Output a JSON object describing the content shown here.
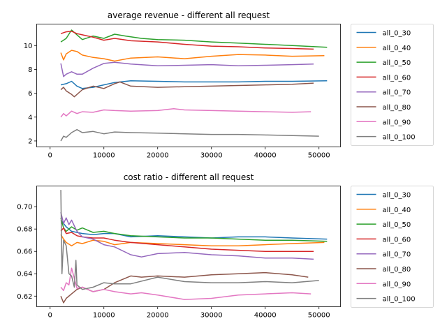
{
  "colors": [
    "#1f77b4",
    "#ff7f0e",
    "#2ca02c",
    "#d62728",
    "#9467bd",
    "#8c564b",
    "#e377c2",
    "#7f7f7f"
  ],
  "chart_data": [
    {
      "type": "line",
      "title": "average revenue - different all request",
      "xlabel": "",
      "ylabel": "",
      "xlim": [
        -2500,
        54000
      ],
      "ylim": [
        1.5,
        11.8
      ],
      "xticks": [
        0,
        10000,
        20000,
        30000,
        40000,
        50000
      ],
      "yticks": [
        2,
        4,
        6,
        8,
        10
      ],
      "ytick_labels": [
        "2",
        "4",
        "6",
        "8",
        "10"
      ],
      "grid": false,
      "legend": "outside-right",
      "series": [
        {
          "name": "all_0_30",
          "x": [
            2000,
            3000,
            4000,
            5000,
            6000,
            8000,
            10000,
            12000,
            15000,
            20000,
            25000,
            30000,
            35000,
            40000,
            45000,
            51500
          ],
          "y": [
            6.7,
            6.8,
            7.0,
            6.6,
            6.4,
            6.5,
            6.7,
            6.9,
            7.05,
            7.0,
            6.95,
            6.95,
            6.95,
            7.0,
            7.0,
            7.05
          ]
        },
        {
          "name": "all_0_40",
          "x": [
            2000,
            2500,
            3000,
            4000,
            5000,
            6000,
            8000,
            10000,
            12000,
            15000,
            20000,
            25000,
            30000,
            35000,
            40000,
            45000,
            51000
          ],
          "y": [
            9.4,
            8.8,
            9.3,
            9.6,
            9.5,
            9.2,
            9.0,
            8.9,
            8.7,
            8.95,
            9.05,
            8.9,
            9.1,
            9.25,
            9.2,
            9.1,
            9.15
          ]
        },
        {
          "name": "all_0_50",
          "x": [
            2000,
            3000,
            4000,
            5000,
            6000,
            8000,
            10000,
            12000,
            14000,
            17000,
            20000,
            25000,
            30000,
            35000,
            40000,
            45000,
            51500
          ],
          "y": [
            10.3,
            10.6,
            11.3,
            10.9,
            10.5,
            10.8,
            10.6,
            10.95,
            10.8,
            10.6,
            10.5,
            10.45,
            10.3,
            10.2,
            10.1,
            10.0,
            9.85
          ]
        },
        {
          "name": "all_0_60",
          "x": [
            2000,
            3000,
            4000,
            5000,
            6000,
            8000,
            10000,
            12000,
            15000,
            20000,
            25000,
            30000,
            35000,
            40000,
            45000,
            49000
          ],
          "y": [
            11.0,
            11.15,
            11.2,
            11.0,
            10.9,
            10.7,
            10.45,
            10.6,
            10.4,
            10.3,
            10.1,
            9.95,
            9.9,
            9.8,
            9.75,
            9.7
          ]
        },
        {
          "name": "all_0_70",
          "x": [
            2000,
            2500,
            3000,
            4000,
            5000,
            6000,
            8000,
            10000,
            12000,
            15000,
            20000,
            25000,
            30000,
            35000,
            40000,
            45000,
            49000
          ],
          "y": [
            8.5,
            7.4,
            7.6,
            7.8,
            7.6,
            7.6,
            8.1,
            8.5,
            8.6,
            8.45,
            8.3,
            8.35,
            8.4,
            8.3,
            8.35,
            8.4,
            8.45
          ]
        },
        {
          "name": "all_0_80",
          "x": [
            2000,
            2500,
            3000,
            4000,
            4500,
            6000,
            8000,
            10000,
            12000,
            13000,
            15000,
            20000,
            25000,
            30000,
            35000,
            40000,
            45000,
            49000
          ],
          "y": [
            6.3,
            6.5,
            6.2,
            5.9,
            5.7,
            6.3,
            6.6,
            6.4,
            6.8,
            6.95,
            6.6,
            6.5,
            6.55,
            6.6,
            6.65,
            6.7,
            6.75,
            6.85
          ]
        },
        {
          "name": "all_0_90",
          "x": [
            2000,
            2500,
            3000,
            4000,
            5000,
            6000,
            8000,
            10000,
            12000,
            15000,
            20000,
            23000,
            25000,
            30000,
            35000,
            40000,
            45000,
            48500
          ],
          "y": [
            4.0,
            4.3,
            4.1,
            4.5,
            4.3,
            4.45,
            4.4,
            4.6,
            4.55,
            4.5,
            4.55,
            4.7,
            4.6,
            4.55,
            4.5,
            4.45,
            4.4,
            4.45
          ]
        },
        {
          "name": "all_0_100",
          "x": [
            2000,
            2500,
            3000,
            4000,
            5000,
            6000,
            8000,
            10000,
            12000,
            15000,
            20000,
            25000,
            30000,
            35000,
            40000,
            45000,
            50000
          ],
          "y": [
            2.0,
            2.4,
            2.3,
            2.7,
            2.95,
            2.7,
            2.8,
            2.6,
            2.75,
            2.7,
            2.65,
            2.6,
            2.55,
            2.55,
            2.5,
            2.45,
            2.4
          ]
        }
      ]
    },
    {
      "type": "line",
      "title": "cost ratio - different all request",
      "xlabel": "",
      "ylabel": "",
      "xlim": [
        -2500,
        54000
      ],
      "ylim": [
        0.6105,
        0.7185
      ],
      "xticks": [
        0,
        10000,
        20000,
        30000,
        40000,
        50000
      ],
      "yticks": [
        0.62,
        0.64,
        0.66,
        0.68,
        0.7
      ],
      "ytick_labels": [
        "0.62",
        "0.64",
        "0.66",
        "0.68",
        "0.70"
      ],
      "grid": false,
      "legend": "outside-right",
      "series": [
        {
          "name": "all_0_30",
          "x": [
            2000,
            3000,
            4000,
            6000,
            8000,
            10000,
            12000,
            15000,
            20000,
            25000,
            30000,
            35000,
            40000,
            45000,
            51500
          ],
          "y": [
            0.688,
            0.682,
            0.678,
            0.676,
            0.675,
            0.676,
            0.676,
            0.673,
            0.674,
            0.673,
            0.672,
            0.673,
            0.673,
            0.672,
            0.671
          ]
        },
        {
          "name": "all_0_40",
          "x": [
            2000,
            2500,
            3000,
            4000,
            5000,
            6000,
            8000,
            10000,
            12000,
            15000,
            20000,
            25000,
            30000,
            35000,
            40000,
            45000,
            51000
          ],
          "y": [
            0.675,
            0.671,
            0.668,
            0.665,
            0.668,
            0.667,
            0.67,
            0.669,
            0.666,
            0.668,
            0.667,
            0.666,
            0.665,
            0.665,
            0.666,
            0.667,
            0.668
          ]
        },
        {
          "name": "all_0_50",
          "x": [
            2000,
            2500,
            3000,
            4000,
            5000,
            6000,
            8000,
            10000,
            12000,
            15000,
            20000,
            25000,
            30000,
            35000,
            40000,
            45000,
            51500
          ],
          "y": [
            0.69,
            0.681,
            0.678,
            0.682,
            0.679,
            0.681,
            0.677,
            0.678,
            0.676,
            0.674,
            0.673,
            0.672,
            0.672,
            0.671,
            0.67,
            0.67,
            0.669
          ]
        },
        {
          "name": "all_0_60",
          "x": [
            2000,
            2500,
            3000,
            4000,
            5000,
            6000,
            8000,
            10000,
            12000,
            15000,
            20000,
            25000,
            30000,
            35000,
            40000,
            45000,
            49000
          ],
          "y": [
            0.678,
            0.681,
            0.676,
            0.677,
            0.674,
            0.673,
            0.672,
            0.672,
            0.67,
            0.668,
            0.666,
            0.664,
            0.662,
            0.661,
            0.66,
            0.66,
            0.66
          ]
        },
        {
          "name": "all_0_70",
          "x": [
            2000,
            2500,
            3000,
            3500,
            4000,
            5000,
            6000,
            8000,
            10000,
            12000,
            15000,
            17000,
            20000,
            25000,
            30000,
            35000,
            40000,
            45000,
            49000
          ],
          "y": [
            0.695,
            0.685,
            0.69,
            0.684,
            0.688,
            0.678,
            0.673,
            0.671,
            0.666,
            0.664,
            0.657,
            0.655,
            0.658,
            0.659,
            0.657,
            0.656,
            0.654,
            0.654,
            0.653
          ]
        },
        {
          "name": "all_0_80",
          "x": [
            2000,
            2500,
            3000,
            4000,
            5000,
            6000,
            8000,
            10000,
            12000,
            15000,
            17000,
            20000,
            25000,
            30000,
            35000,
            40000,
            45000,
            48000
          ],
          "y": [
            0.62,
            0.614,
            0.618,
            0.622,
            0.626,
            0.628,
            0.624,
            0.626,
            0.632,
            0.638,
            0.637,
            0.638,
            0.637,
            0.639,
            0.64,
            0.641,
            0.639,
            0.637
          ]
        },
        {
          "name": "all_0_90",
          "x": [
            2000,
            2500,
            3000,
            3500,
            4000,
            5000,
            6000,
            8000,
            10000,
            12000,
            15000,
            17000,
            20000,
            25000,
            30000,
            35000,
            40000,
            45000,
            48500
          ],
          "y": [
            0.628,
            0.625,
            0.632,
            0.63,
            0.645,
            0.627,
            0.628,
            0.624,
            0.626,
            0.624,
            0.622,
            0.623,
            0.621,
            0.617,
            0.618,
            0.621,
            0.622,
            0.623,
            0.622
          ]
        },
        {
          "name": "all_0_100",
          "x": [
            2000,
            2200,
            2500,
            3000,
            3500,
            4000,
            4500,
            4800,
            5000,
            6000,
            8000,
            10000,
            12000,
            15000,
            20000,
            25000,
            30000,
            35000,
            40000,
            45000,
            50000
          ],
          "y": [
            0.715,
            0.64,
            0.67,
            0.665,
            0.64,
            0.638,
            0.628,
            0.652,
            0.63,
            0.626,
            0.628,
            0.632,
            0.631,
            0.631,
            0.637,
            0.633,
            0.632,
            0.632,
            0.633,
            0.632,
            0.634
          ]
        }
      ]
    }
  ]
}
